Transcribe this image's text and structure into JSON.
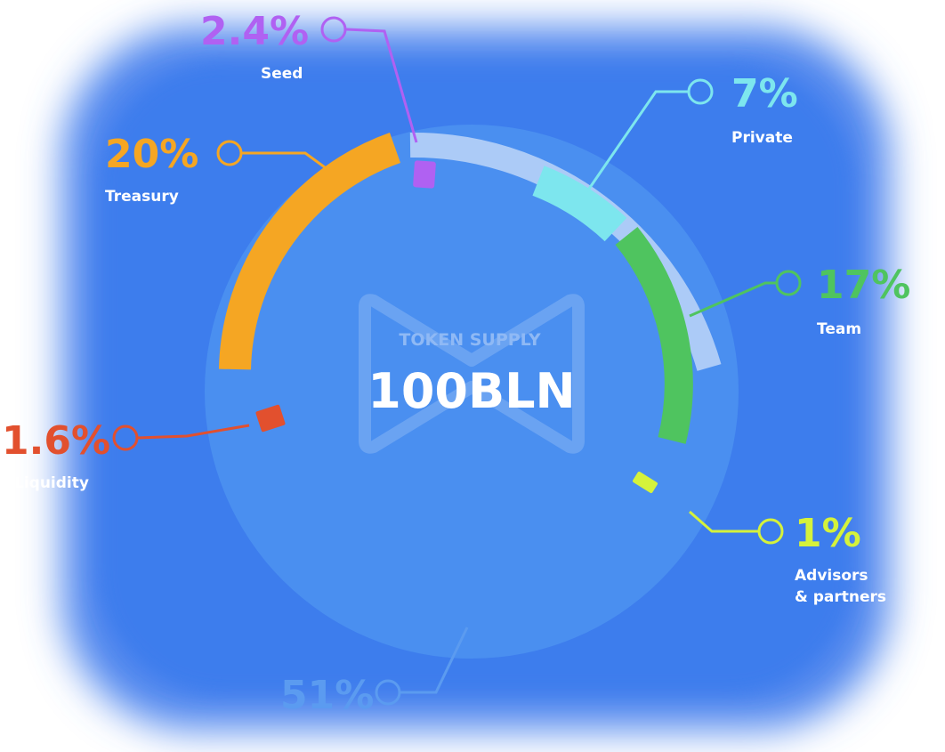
{
  "chart_data": {
    "type": "pie",
    "title": "TOKEN SUPPLY",
    "center_value": "100BLN",
    "segments": [
      {
        "name": "Seed",
        "value": 2.4,
        "value_label": "2.4%",
        "color": "#b061f2"
      },
      {
        "name": "Private",
        "value": 7,
        "value_label": "7%",
        "color": "#7de6ee"
      },
      {
        "name": "Team",
        "value": 17,
        "value_label": "17%",
        "color": "#4fc45f"
      },
      {
        "name": "Advisors & partners",
        "value": 1,
        "value_label": "1%",
        "color": "#d5f23b"
      },
      {
        "name": "",
        "value": 51,
        "value_label": "51%",
        "color": "#3f8ee8"
      },
      {
        "name": "Liquidity",
        "value": 1.6,
        "value_label": "1.6%",
        "color": "#e2502e"
      },
      {
        "name": "Treasury",
        "value": 20,
        "value_label": "20%",
        "color": "#f5a623"
      }
    ]
  },
  "labels": {
    "seed": {
      "value": "2.4%",
      "name": "Seed"
    },
    "private": {
      "value": "7%",
      "name": "Private"
    },
    "team": {
      "value": "17%",
      "name": "Team"
    },
    "advisors": {
      "value": "1%",
      "name_line1": "Advisors",
      "name_line2": "& partners"
    },
    "ecosystem": {
      "value": "51%"
    },
    "liquidity": {
      "value": "1.6%",
      "name": "Liquidity"
    },
    "treasury": {
      "value": "20%",
      "name": "Treasury"
    }
  },
  "colors": {
    "glow": "#3b7df0",
    "disc": "#4a8ff0",
    "track": "#b7d1f7"
  }
}
